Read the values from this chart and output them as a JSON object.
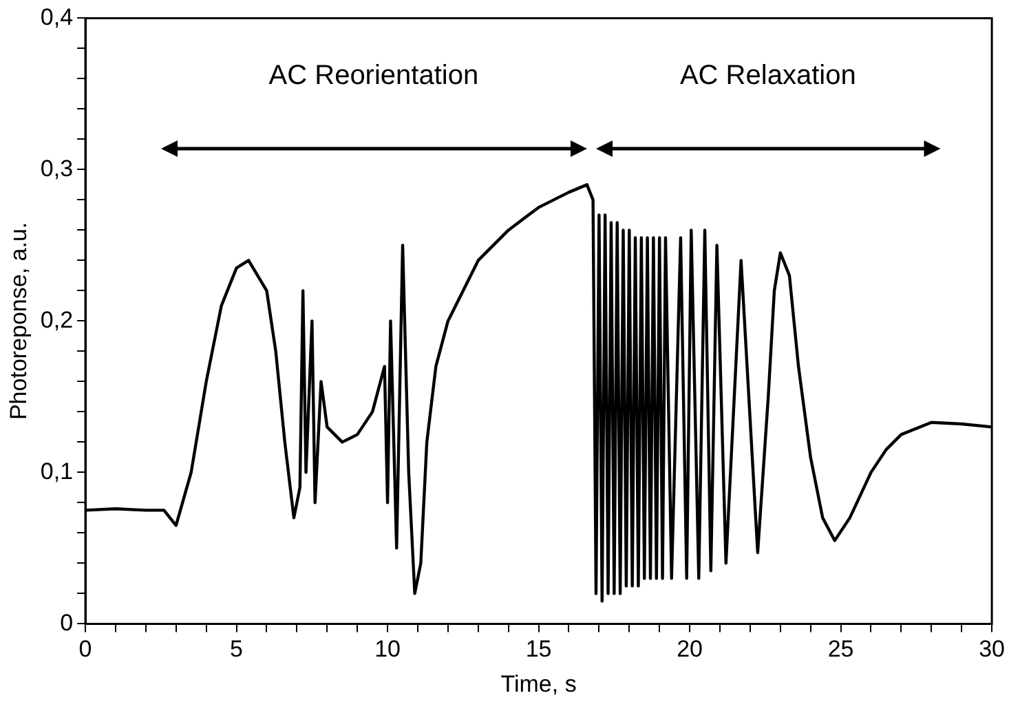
{
  "chart_data": {
    "type": "line",
    "xlabel": "Time, s",
    "ylabel": "Photoreponse, a.u.",
    "xlim": [
      0,
      30
    ],
    "ylim": [
      0,
      0.4
    ],
    "xticks": [
      0,
      {
        "value": 1,
        "label": null
      },
      {
        "value": 2,
        "label": null
      },
      {
        "value": 3,
        "label": null
      },
      {
        "value": 4,
        "label": null
      },
      5,
      {
        "value": 6,
        "label": null
      },
      {
        "value": 7,
        "label": null
      },
      {
        "value": 8,
        "label": null
      },
      {
        "value": 9,
        "label": null
      },
      10,
      {
        "value": 11,
        "label": null
      },
      {
        "value": 12,
        "label": null
      },
      {
        "value": 13,
        "label": null
      },
      {
        "value": 14,
        "label": null
      },
      15,
      {
        "value": 16,
        "label": null
      },
      {
        "value": 17,
        "label": null
      },
      {
        "value": 18,
        "label": null
      },
      {
        "value": 19,
        "label": null
      },
      20,
      {
        "value": 21,
        "label": null
      },
      {
        "value": 22,
        "label": null
      },
      {
        "value": 23,
        "label": null
      },
      {
        "value": 24,
        "label": null
      },
      25,
      {
        "value": 26,
        "label": null
      },
      {
        "value": 27,
        "label": null
      },
      {
        "value": 28,
        "label": null
      },
      {
        "value": 29,
        "label": null
      },
      30
    ],
    "yticks": [
      0,
      {
        "value": 0.02,
        "label": null
      },
      {
        "value": 0.04,
        "label": null
      },
      {
        "value": 0.06,
        "label": null
      },
      {
        "value": 0.08,
        "label": null
      },
      {
        "value": 0.1,
        "label": "0,1"
      },
      {
        "value": 0.12,
        "label": null
      },
      {
        "value": 0.14,
        "label": null
      },
      {
        "value": 0.16,
        "label": null
      },
      {
        "value": 0.18,
        "label": null
      },
      {
        "value": 0.2,
        "label": "0,2"
      },
      {
        "value": 0.22,
        "label": null
      },
      {
        "value": 0.24,
        "label": null
      },
      {
        "value": 0.26,
        "label": null
      },
      {
        "value": 0.28,
        "label": null
      },
      {
        "value": 0.3,
        "label": "0,3"
      },
      {
        "value": 0.32,
        "label": null
      },
      {
        "value": 0.34,
        "label": null
      },
      {
        "value": 0.36,
        "label": null
      },
      {
        "value": 0.38,
        "label": null
      },
      {
        "value": 0.4,
        "label": "0,4"
      }
    ],
    "grid": false,
    "legend": false,
    "marker": "none",
    "line_style": "solid",
    "annotations": [
      "AC Reorientation",
      "AC Relaxation"
    ],
    "series": [
      {
        "color": "#000000",
        "x": [
          0,
          1,
          2,
          2.6,
          3.0,
          3.5,
          4,
          4.5,
          5,
          5.4,
          6,
          6.3,
          6.6,
          6.9,
          7.1,
          7.2,
          7.3,
          7.5,
          7.6,
          7.8,
          8,
          8.5,
          9,
          9.5,
          9.9,
          10.0,
          10.1,
          10.3,
          10.5,
          10.7,
          10.9,
          11.1,
          11.3,
          11.6,
          12,
          13,
          14,
          15,
          16,
          16.6,
          16.8,
          16.9,
          17.0,
          17.1,
          17.2,
          17.3,
          17.4,
          17.5,
          17.6,
          17.7,
          17.8,
          17.9,
          18.0,
          18.1,
          18.2,
          18.3,
          18.4,
          18.5,
          18.6,
          18.7,
          18.8,
          18.9,
          19.0,
          19.1,
          19.2,
          19.4,
          19.7,
          19.9,
          20.05,
          20.3,
          20.5,
          20.7,
          20.9,
          21.2,
          21.7,
          22.25,
          22.6,
          22.8,
          23.0,
          23.3,
          23.6,
          24.0,
          24.4,
          24.8,
          25.3,
          26,
          26.5,
          27,
          28,
          29,
          30
        ],
        "values": [
          0.075,
          0.076,
          0.075,
          0.075,
          0.065,
          0.1,
          0.16,
          0.21,
          0.235,
          0.24,
          0.22,
          0.18,
          0.12,
          0.07,
          0.09,
          0.22,
          0.1,
          0.2,
          0.08,
          0.16,
          0.13,
          0.12,
          0.125,
          0.14,
          0.17,
          0.08,
          0.2,
          0.05,
          0.25,
          0.1,
          0.02,
          0.04,
          0.12,
          0.17,
          0.2,
          0.24,
          0.26,
          0.275,
          0.285,
          0.29,
          0.28,
          0.02,
          0.27,
          0.015,
          0.27,
          0.02,
          0.265,
          0.02,
          0.265,
          0.02,
          0.26,
          0.025,
          0.26,
          0.025,
          0.255,
          0.025,
          0.255,
          0.03,
          0.255,
          0.03,
          0.255,
          0.03,
          0.255,
          0.03,
          0.255,
          0.03,
          0.255,
          0.03,
          0.26,
          0.03,
          0.26,
          0.035,
          0.25,
          0.04,
          0.24,
          0.047,
          0.15,
          0.22,
          0.245,
          0.23,
          0.17,
          0.11,
          0.07,
          0.055,
          0.07,
          0.1,
          0.115,
          0.125,
          0.133,
          0.132,
          0.13
        ]
      }
    ]
  }
}
